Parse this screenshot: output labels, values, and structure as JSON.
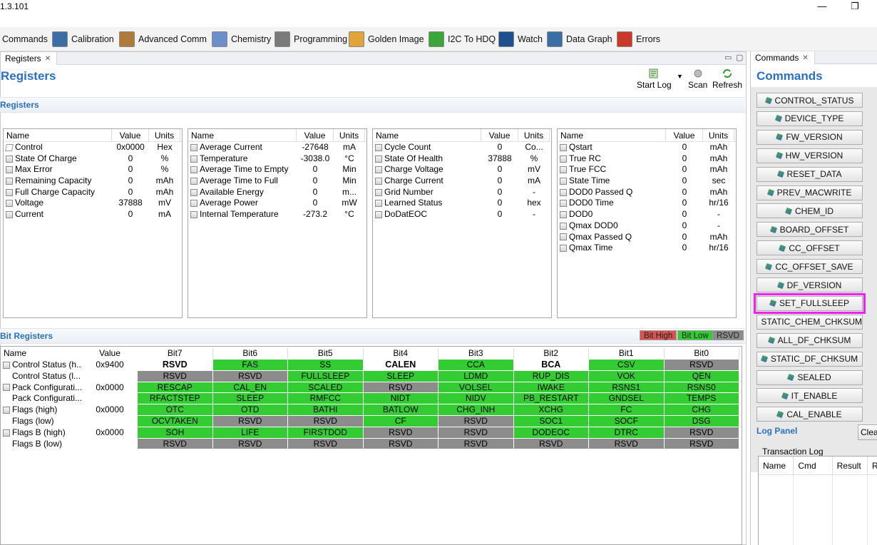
{
  "window": {
    "version": "1.3.101",
    "minimize": "—",
    "maximize": "❐"
  },
  "toolbar": {
    "items": [
      {
        "label": "Commands",
        "icon": "commands-icon",
        "color": "#ffffff"
      },
      {
        "label": "Calibration",
        "icon": "calibration-icon",
        "color": "#3a6ea5"
      },
      {
        "label": "Advanced Comm",
        "icon": "advanced-comm-icon",
        "color": "#b07a3a"
      },
      {
        "label": "Chemistry",
        "icon": "chemistry-icon",
        "color": "#6a8fcc"
      },
      {
        "label": "Programming",
        "icon": "programming-icon",
        "color": "#7a7a7a"
      },
      {
        "label": "Golden Image",
        "icon": "golden-image-icon",
        "color": "#e1a43a"
      },
      {
        "label": "I2C To HDQ",
        "icon": "i2c-hdq-icon",
        "color": "#3aa63a"
      },
      {
        "label": "Watch",
        "icon": "watch-icon",
        "color": "#1f4f8f"
      },
      {
        "label": "Data Graph",
        "icon": "data-graph-icon",
        "color": "#3a6ea5"
      },
      {
        "label": "Errors",
        "icon": "errors-icon",
        "color": "#c93a2a"
      }
    ]
  },
  "registers_view": {
    "tab_label": "Registers",
    "tab_close": "✕",
    "view_min": "▭",
    "view_max": "▢",
    "page_title": "Registers",
    "start_log": "Start Log",
    "scan": "Scan",
    "refresh": "Refresh",
    "registers_section": "Registers",
    "bit_registers_section": "Bit Registers",
    "legend": {
      "high": "Bit High",
      "low": "Bit Low",
      "rsvd": "RSVD",
      "high_color": "#d9534f",
      "low_color": "#33cc33",
      "rsvd_color": "#8c8c8c"
    },
    "tables": [
      {
        "headers": [
          "Name",
          "Value",
          "Units"
        ],
        "rows": [
          {
            "name": "Control",
            "value": "0x0000",
            "unit": "Hex",
            "icon": "pen"
          },
          {
            "name": "State Of Charge",
            "value": "0",
            "unit": "%"
          },
          {
            "name": "Max Error",
            "value": "0",
            "unit": "%"
          },
          {
            "name": "Remaining Capacity",
            "value": "0",
            "unit": "mAh"
          },
          {
            "name": "Full Charge Capacity",
            "value": "0",
            "unit": "mAh"
          },
          {
            "name": "Voltage",
            "value": "37888",
            "unit": "mV"
          },
          {
            "name": "Current",
            "value": "0",
            "unit": "mA"
          }
        ]
      },
      {
        "headers": [
          "Name",
          "Value",
          "Units"
        ],
        "rows": [
          {
            "name": "Average Current",
            "value": "-27648",
            "unit": "mA"
          },
          {
            "name": "Temperature",
            "value": "-3038.0",
            "unit": "°C"
          },
          {
            "name": "Average Time to Empty",
            "value": "0",
            "unit": "Min"
          },
          {
            "name": "Average Time to Full",
            "value": "0",
            "unit": "Min"
          },
          {
            "name": "Available Energy",
            "value": "0",
            "unit": "m..."
          },
          {
            "name": "Average Power",
            "value": "0",
            "unit": "mW"
          },
          {
            "name": "Internal Temperature",
            "value": "-273.2",
            "unit": "°C"
          }
        ]
      },
      {
        "headers": [
          "Name",
          "Value",
          "Units"
        ],
        "rows": [
          {
            "name": "Cycle Count",
            "value": "0",
            "unit": "Co..."
          },
          {
            "name": "State Of Health",
            "value": "37888",
            "unit": "%"
          },
          {
            "name": "Charge Voltage",
            "value": "0",
            "unit": "mV"
          },
          {
            "name": "Charge Current",
            "value": "0",
            "unit": "mA"
          },
          {
            "name": "Grid Number",
            "value": "0",
            "unit": "-"
          },
          {
            "name": "Learned Status",
            "value": "0",
            "unit": "hex"
          },
          {
            "name": "DoDatEOC",
            "value": "0",
            "unit": "-"
          }
        ]
      },
      {
        "headers": [
          "Name",
          "Value",
          "Units"
        ],
        "rows": [
          {
            "name": "Qstart",
            "value": "0",
            "unit": "mAh"
          },
          {
            "name": "True RC",
            "value": "0",
            "unit": "mAh"
          },
          {
            "name": "True FCC",
            "value": "0",
            "unit": "mAh"
          },
          {
            "name": "State Time",
            "value": "0",
            "unit": "sec"
          },
          {
            "name": "DOD0 Passed Q",
            "value": "0",
            "unit": "mAh"
          },
          {
            "name": "DOD0 Time",
            "value": "0",
            "unit": "hr/16"
          },
          {
            "name": "DOD0",
            "value": "0",
            "unit": "-"
          },
          {
            "name": "Qmax DOD0",
            "value": "0",
            "unit": "-"
          },
          {
            "name": "Qmax Passed Q",
            "value": "0",
            "unit": "mAh"
          },
          {
            "name": "Qmax Time",
            "value": "0",
            "unit": "hr/16"
          }
        ]
      }
    ],
    "bit_table": {
      "headers": [
        "Name",
        "Value",
        "Bit7",
        "Bit6",
        "Bit5",
        "Bit4",
        "Bit3",
        "Bit2",
        "Bit1",
        "Bit0"
      ],
      "rows": [
        {
          "name": "Control Status (h...",
          "value": "0x9400",
          "icon": true,
          "bits": [
            [
              "RSVD",
              "bold"
            ],
            [
              "FAS",
              "green"
            ],
            [
              "SS",
              "green"
            ],
            [
              "CALEN",
              "bold"
            ],
            [
              "CCA",
              "green"
            ],
            [
              "BCA",
              "bold"
            ],
            [
              "CSV",
              "green"
            ],
            [
              "RSVD",
              "gray"
            ]
          ]
        },
        {
          "name": "Control Status (l...",
          "value": "",
          "icon": false,
          "bits": [
            [
              "RSVD",
              "gray"
            ],
            [
              "RSVD",
              "gray"
            ],
            [
              "FULLSLEEP",
              "green"
            ],
            [
              "SLEEP",
              "green"
            ],
            [
              "LDMD",
              "green"
            ],
            [
              "RUP_DIS",
              "green"
            ],
            [
              "VOK",
              "green"
            ],
            [
              "QEN",
              "green"
            ]
          ]
        },
        {
          "name": "Pack Configurati...",
          "value": "0x0000",
          "icon": true,
          "bits": [
            [
              "RESCAP",
              "green"
            ],
            [
              "CAL_EN",
              "green"
            ],
            [
              "SCALED",
              "green"
            ],
            [
              "RSVD",
              "gray"
            ],
            [
              "VOLSEL",
              "green"
            ],
            [
              "IWAKE",
              "green"
            ],
            [
              "RSNS1",
              "green"
            ],
            [
              "RSNS0",
              "green"
            ]
          ]
        },
        {
          "name": "Pack Configurati...",
          "value": "",
          "icon": false,
          "bits": [
            [
              "RFACTSTEP",
              "green"
            ],
            [
              "SLEEP",
              "green"
            ],
            [
              "RMFCC",
              "green"
            ],
            [
              "NIDT",
              "green"
            ],
            [
              "NIDV",
              "green"
            ],
            [
              "PB_RESTART",
              "green"
            ],
            [
              "GNDSEL",
              "green"
            ],
            [
              "TEMPS",
              "green"
            ]
          ]
        },
        {
          "name": "Flags (high)",
          "value": "0x0000",
          "icon": true,
          "bits": [
            [
              "OTC",
              "green"
            ],
            [
              "OTD",
              "green"
            ],
            [
              "BATHI",
              "green"
            ],
            [
              "BATLOW",
              "green"
            ],
            [
              "CHG_INH",
              "green"
            ],
            [
              "XCHG",
              "green"
            ],
            [
              "FC",
              "green"
            ],
            [
              "CHG",
              "green"
            ]
          ]
        },
        {
          "name": "Flags (low)",
          "value": "",
          "icon": false,
          "bits": [
            [
              "OCVTAKEN",
              "green"
            ],
            [
              "RSVD",
              "gray"
            ],
            [
              "RSVD",
              "gray"
            ],
            [
              "CF",
              "green"
            ],
            [
              "RSVD",
              "gray"
            ],
            [
              "SOC1",
              "green"
            ],
            [
              "SOCF",
              "green"
            ],
            [
              "DSG",
              "green"
            ]
          ]
        },
        {
          "name": "Flags B (high)",
          "value": "0x0000",
          "icon": true,
          "bits": [
            [
              "SOH",
              "green"
            ],
            [
              "LIFE",
              "green"
            ],
            [
              "FIRSTDOD",
              "green"
            ],
            [
              "RSVD",
              "gray"
            ],
            [
              "RSVD",
              "gray"
            ],
            [
              "DODEOC",
              "green"
            ],
            [
              "DTRC",
              "green"
            ],
            [
              "RSVD",
              "gray"
            ]
          ]
        },
        {
          "name": "Flags B (low)",
          "value": "",
          "icon": false,
          "bits": [
            [
              "RSVD",
              "gray"
            ],
            [
              "RSVD",
              "gray"
            ],
            [
              "RSVD",
              "gray"
            ],
            [
              "RSVD",
              "gray"
            ],
            [
              "RSVD",
              "gray"
            ],
            [
              "RSVD",
              "gray"
            ],
            [
              "RSVD",
              "gray"
            ],
            [
              "RSVD",
              "gray"
            ]
          ]
        }
      ]
    }
  },
  "commands_view": {
    "tab_label": "Commands",
    "tab_close": "✕",
    "title": "Commands",
    "buttons": [
      "CONTROL_STATUS",
      "DEVICE_TYPE",
      "FW_VERSION",
      "HW_VERSION",
      "RESET_DATA",
      "PREV_MACWRITE",
      "CHEM_ID",
      "BOARD_OFFSET",
      "CC_OFFSET",
      "CC_OFFSET_SAVE",
      "DF_VERSION",
      "SET_FULLSLEEP",
      "STATIC_CHEM_CHKSUM",
      "ALL_DF_CHKSUM",
      "STATIC_DF_CHKSUM",
      "SEALED",
      "IT_ENABLE",
      "CAL_ENABLE"
    ],
    "highlighted": "SET_FULLSLEEP",
    "highlight_color": "#ee22ee",
    "log_panel_title": "Log Panel",
    "clear_label": "Clea",
    "transaction_log_label": "Transaction Log",
    "log_headers": [
      "Name",
      "Cmd",
      "Result",
      "Rea"
    ]
  }
}
